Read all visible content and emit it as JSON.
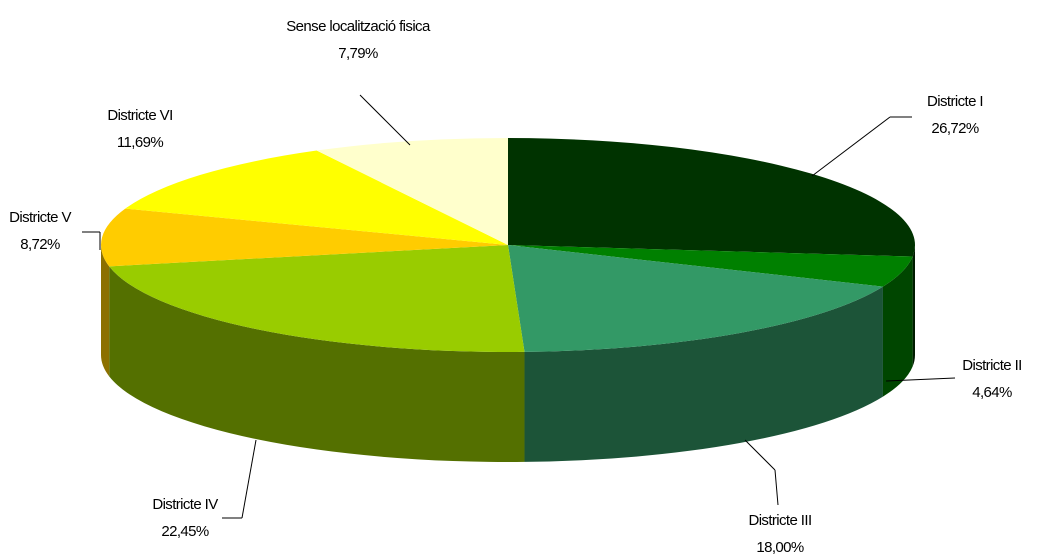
{
  "chart_data": {
    "type": "pie3d",
    "categories": [
      "Districte I",
      "Districte II",
      "Districte III",
      "Districte IV",
      "Districte V",
      "Districte VI",
      "Sense localització fisica"
    ],
    "values": [
      26.72,
      4.64,
      18.0,
      22.45,
      8.72,
      11.69,
      7.79
    ],
    "value_labels": [
      "26,72%",
      "4,64%",
      "18,00%",
      "22,45%",
      "8,72%",
      "11,69%",
      "7,79%"
    ],
    "colors": [
      "#003300",
      "#008000",
      "#339966",
      "#99cc00",
      "#ffcc00",
      "#ffff00",
      "#ffffcc"
    ]
  }
}
